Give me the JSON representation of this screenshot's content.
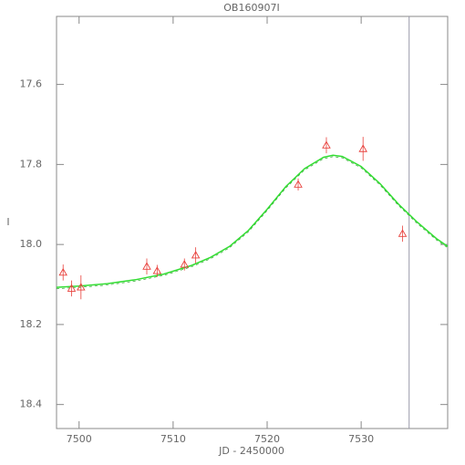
{
  "chart_data": {
    "type": "lightcurve",
    "title": "OB160907I",
    "xlabel": "JD - 2450000",
    "ylabel": "I",
    "xlim": [
      7497.6,
      7539.2
    ],
    "ylim": [
      17.43,
      18.46
    ],
    "y_inverted": true,
    "xticks": [
      7500,
      7510,
      7520,
      7530
    ],
    "yticks": [
      17.6,
      17.8,
      {
        "value": 18,
        "label": "18.0"
      },
      18.2,
      18.4
    ],
    "points": {
      "color": "#e8413c",
      "x": [
        7498.3,
        7499.2,
        7500.2,
        7507.2,
        7508.3,
        7511.2,
        7512.4,
        7523.3,
        7526.3,
        7530.2,
        7534.4
      ],
      "y": [
        18.07,
        18.11,
        18.107,
        18.055,
        18.066,
        18.05,
        18.027,
        17.85,
        17.752,
        17.761,
        17.973
      ],
      "err": [
        0.02,
        0.02,
        0.03,
        0.02,
        0.015,
        0.015,
        0.02,
        0.015,
        0.02,
        0.03,
        0.02
      ]
    },
    "model": {
      "color": "#33dd33",
      "x": [
        7497.6,
        7500,
        7503,
        7506,
        7509,
        7512,
        7514,
        7516,
        7518,
        7520,
        7522,
        7524,
        7526,
        7527,
        7528,
        7530,
        7532,
        7534,
        7536,
        7538,
        7539.2
      ],
      "y": [
        18.107,
        18.104,
        18.098,
        18.088,
        18.074,
        18.052,
        18.032,
        18.005,
        17.965,
        17.912,
        17.855,
        17.81,
        17.782,
        17.777,
        17.78,
        17.805,
        17.848,
        17.9,
        17.945,
        17.985,
        18.005
      ]
    },
    "vline": {
      "x": 7535.1,
      "color": "#9999aa"
    }
  }
}
